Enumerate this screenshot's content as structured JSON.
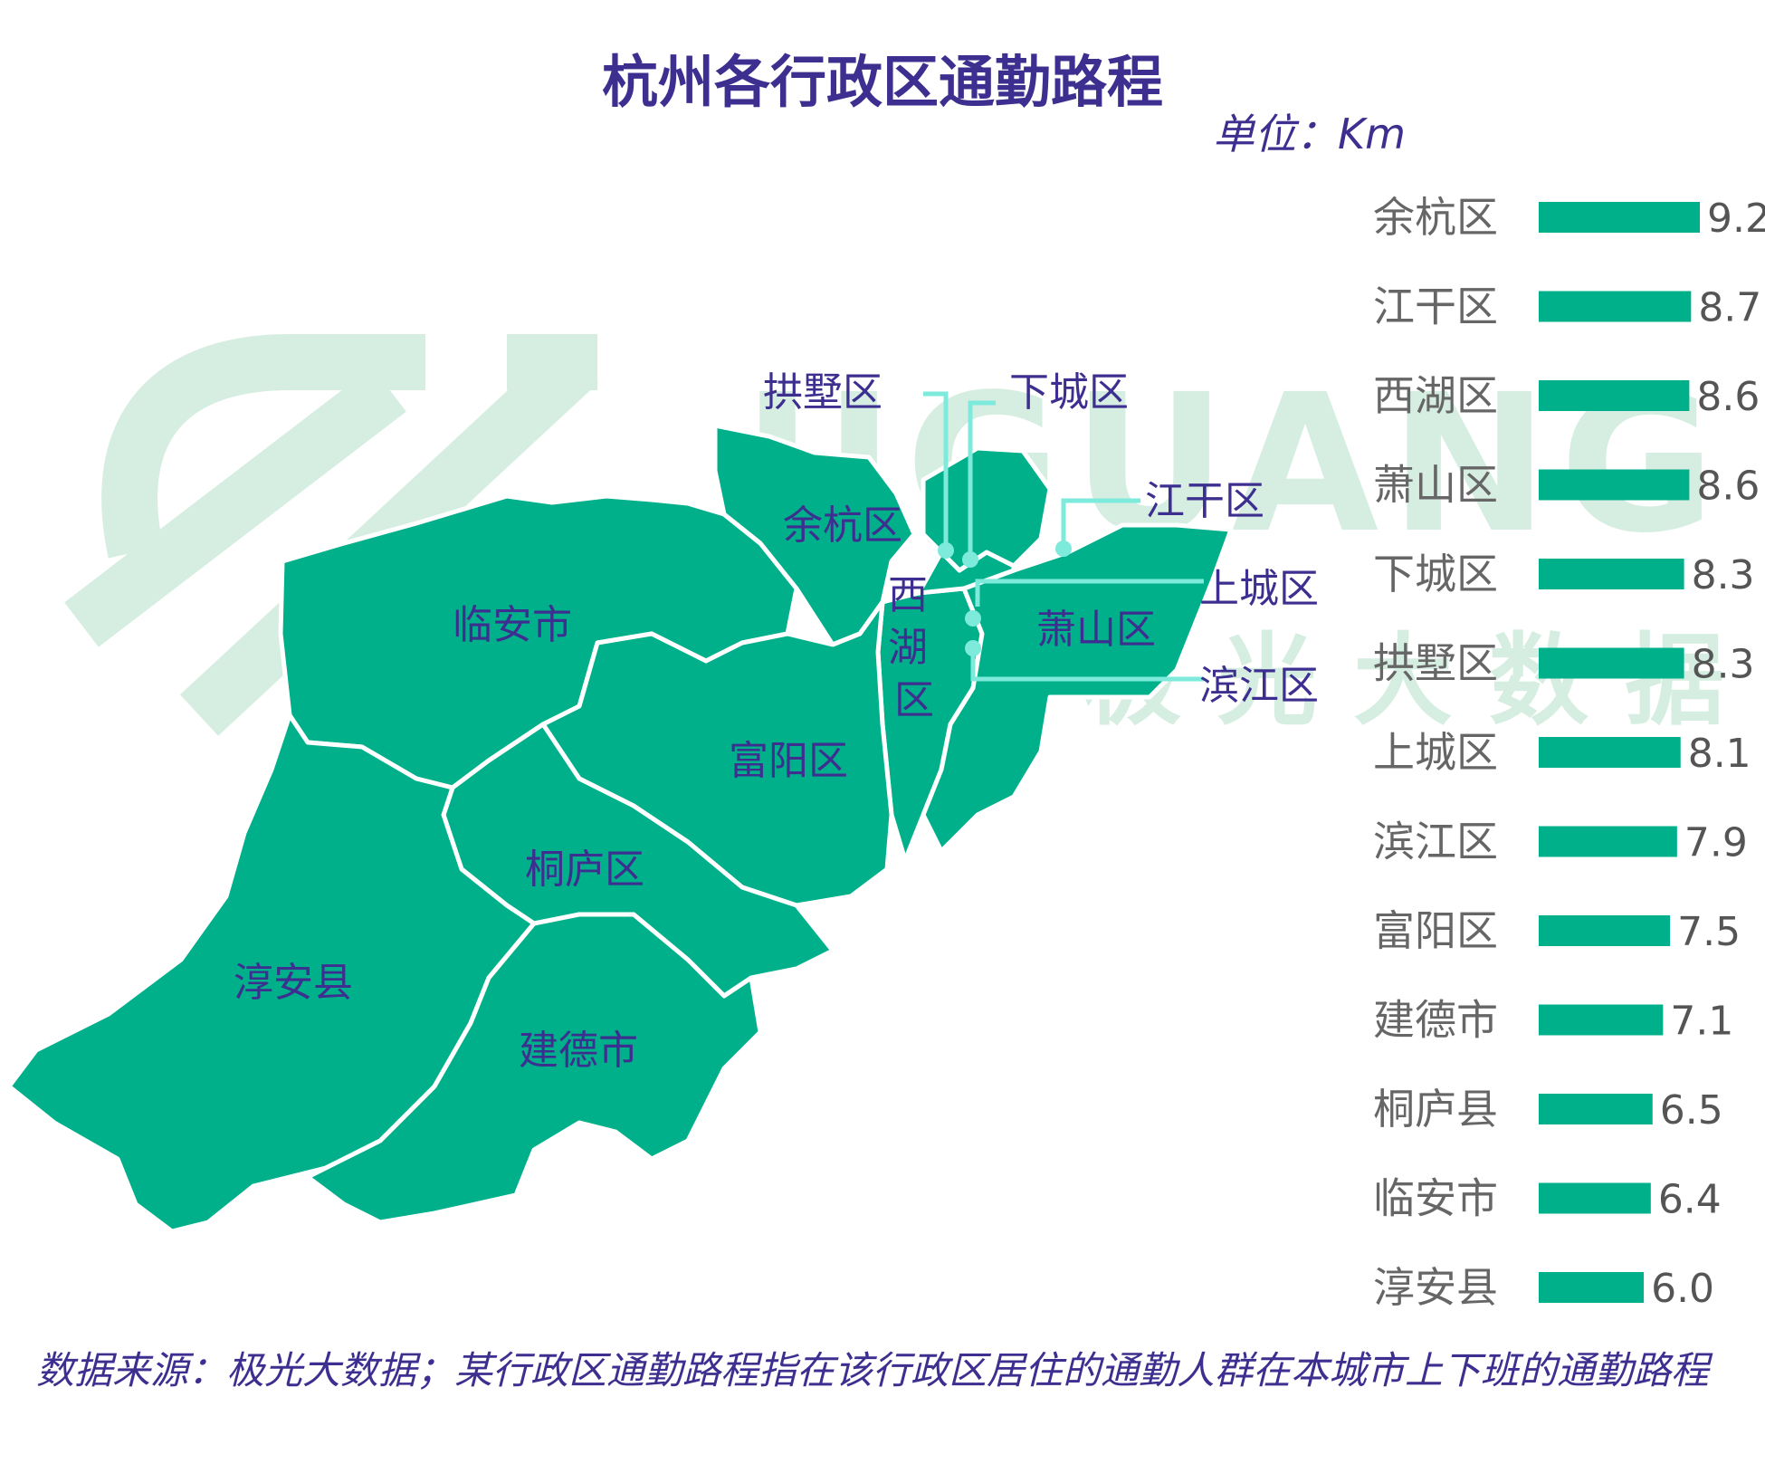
{
  "title": "杭州各行政区通勤路程",
  "unit": "单位：Km",
  "footnote": "数据来源：极光大数据；某行政区通勤路程指在该行政区居住的通勤人群在本城市上下班的通勤路程",
  "watermark": {
    "latin": "JIGUANG",
    "cn": "极光大数据"
  },
  "colors": {
    "title": "#3d2f8f",
    "bar": "#00b08b",
    "map_fill": "#00b08b",
    "map_border": "#ffffff",
    "watermark": "#d6eee2",
    "leader_line": "#7eeadc",
    "category_text": "#666666",
    "value_text": "#555555"
  },
  "map_labels": {
    "yuhang": "余杭区",
    "linan": "临安市",
    "fuyang": "富阳区",
    "tonglu": "桐庐区",
    "chunan": "淳安县",
    "jiande": "建德市",
    "xihu": "西湖区",
    "xiaoshan": "萧山区",
    "gongshu": "拱墅区",
    "xiacheng": "下城区",
    "jianggan": "江干区",
    "shangcheng": "上城区",
    "binjiang": "滨江区"
  },
  "chart_data": {
    "type": "bar",
    "orientation": "horizontal",
    "categories": [
      "余杭区",
      "江干区",
      "西湖区",
      "萧山区",
      "下城区",
      "拱墅区",
      "上城区",
      "滨江区",
      "富阳区",
      "建德市",
      "桐庐县",
      "临安市",
      "淳安县"
    ],
    "values": [
      9.2,
      8.7,
      8.6,
      8.6,
      8.3,
      8.3,
      8.1,
      7.9,
      7.5,
      7.1,
      6.5,
      6.4,
      6.0
    ],
    "value_labels": [
      "9.2",
      "8.7",
      "8.6",
      "8.6",
      "8.3",
      "8.3",
      "8.1",
      "7.9",
      "7.5",
      "7.1",
      "6.5",
      "6.4",
      "6.0"
    ],
    "title": "杭州各行政区通勤路程",
    "unit": "单位：Km",
    "xlim": [
      0,
      9.2
    ],
    "grid": false,
    "legend": "none"
  }
}
